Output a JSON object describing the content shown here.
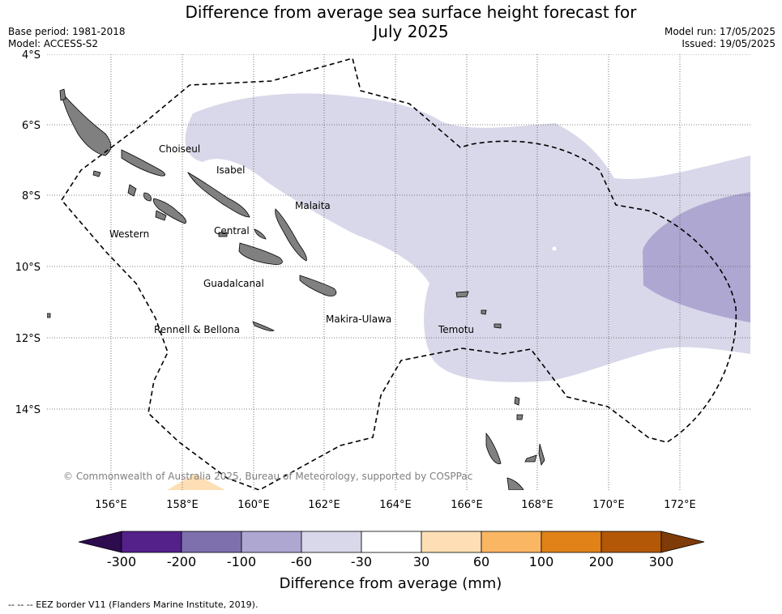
{
  "title_line1": "Difference from average sea surface height forecast for",
  "title_line2": "July 2025",
  "base_period": "Base period: 1981-2018",
  "model": "Model: ACCESS-S2",
  "model_run": "Model run: 17/05/2025",
  "issued": "Issued: 19/05/2025",
  "latitude_labels": [
    "4°S",
    "6°S",
    "8°S",
    "10°S",
    "12°S",
    "14°S"
  ],
  "longitude_labels": [
    "156°E",
    "158°E",
    "160°E",
    "162°E",
    "164°E",
    "166°E",
    "168°E",
    "170°E",
    "172°E"
  ],
  "regions": [
    {
      "name": "Choiseul"
    },
    {
      "name": "Isabel"
    },
    {
      "name": "Malaita"
    },
    {
      "name": "Western"
    },
    {
      "name": "Central"
    },
    {
      "name": "Guadalcanal"
    },
    {
      "name": "Makira-Ulawa"
    },
    {
      "name": "Temotu"
    },
    {
      "name": "Rennell & Bellona"
    }
  ],
  "copyright": "© Commonwealth of Australia 2025, Bureau of Meteorology, supported by COSPPac",
  "colorbar": {
    "label": "Difference from average (mm)",
    "ticks": [
      "-300",
      "-200",
      "-100",
      "-60",
      "-30",
      "30",
      "60",
      "100",
      "200",
      "300"
    ],
    "colors": [
      "#2d0b4e",
      "#54208a",
      "#7e70ad",
      "#aea7d1",
      "#d8d8ea",
      "#ffffff",
      "#fedfb5",
      "#fbb663",
      "#e08217",
      "#b35806",
      "#7f3b08"
    ]
  },
  "footnote": "--  --  -- EEZ border V11 (Flanders Marine Institute, 2019)."
}
